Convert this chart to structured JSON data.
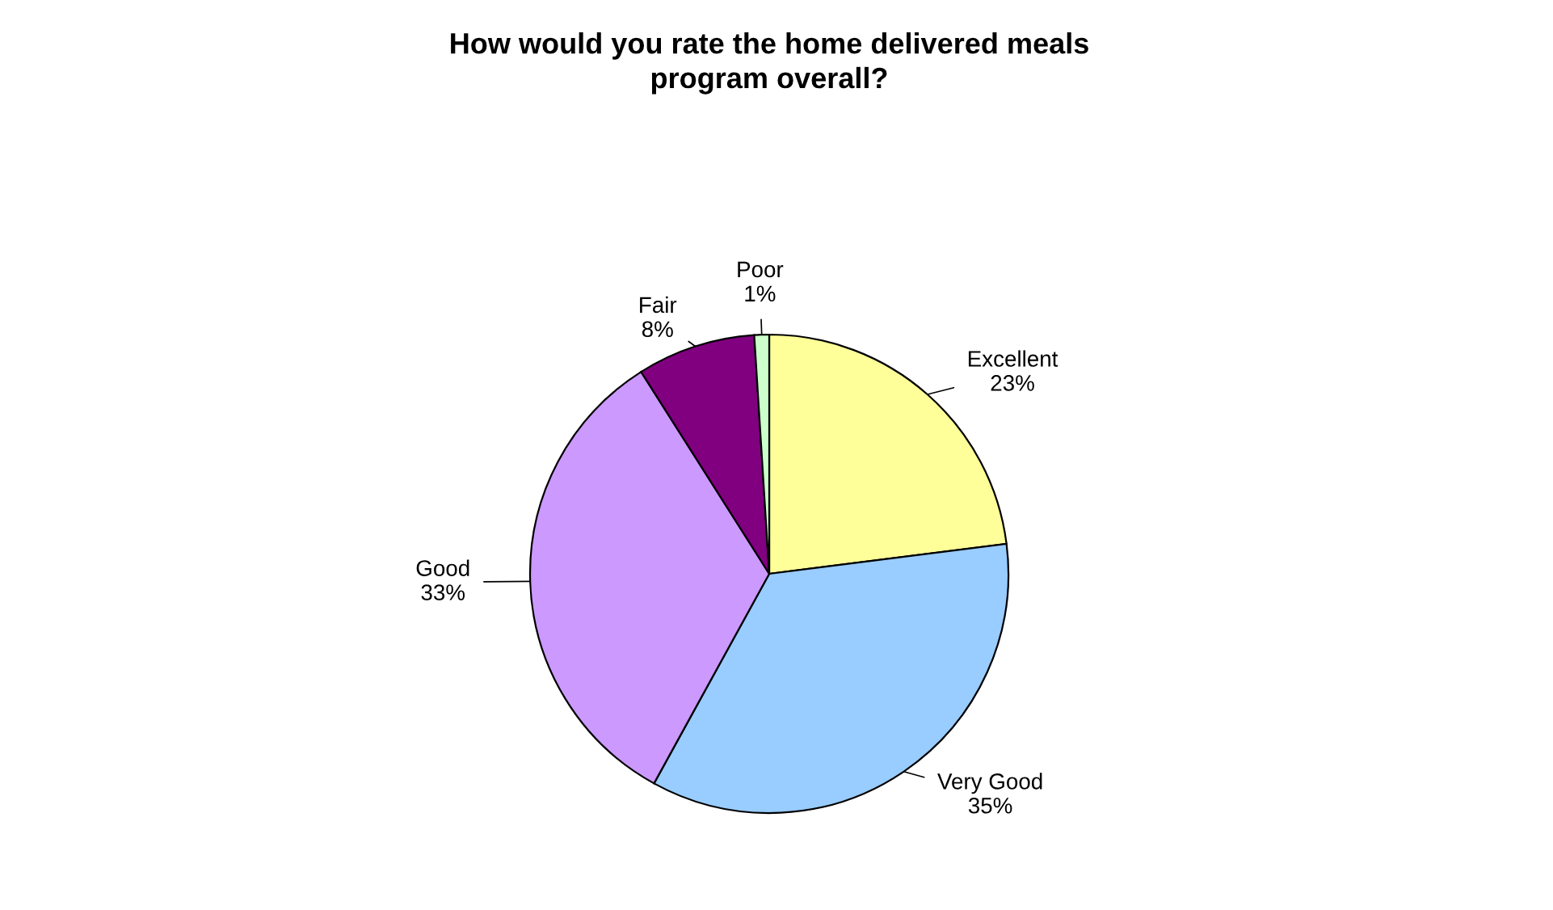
{
  "chart_data": {
    "type": "pie",
    "title": "How would you rate the home delivered meals\nprogram overall?",
    "categories": [
      "Excellent",
      "Very Good",
      "Good",
      "Fair",
      "Poor"
    ],
    "values": [
      23,
      35,
      33,
      8,
      1
    ],
    "value_labels": [
      "23%",
      "35%",
      "33%",
      "8%",
      "1%"
    ],
    "colors": [
      "#ffff99",
      "#99ccff",
      "#cc99ff",
      "#800080",
      "#ccffcc"
    ],
    "legend": false
  }
}
